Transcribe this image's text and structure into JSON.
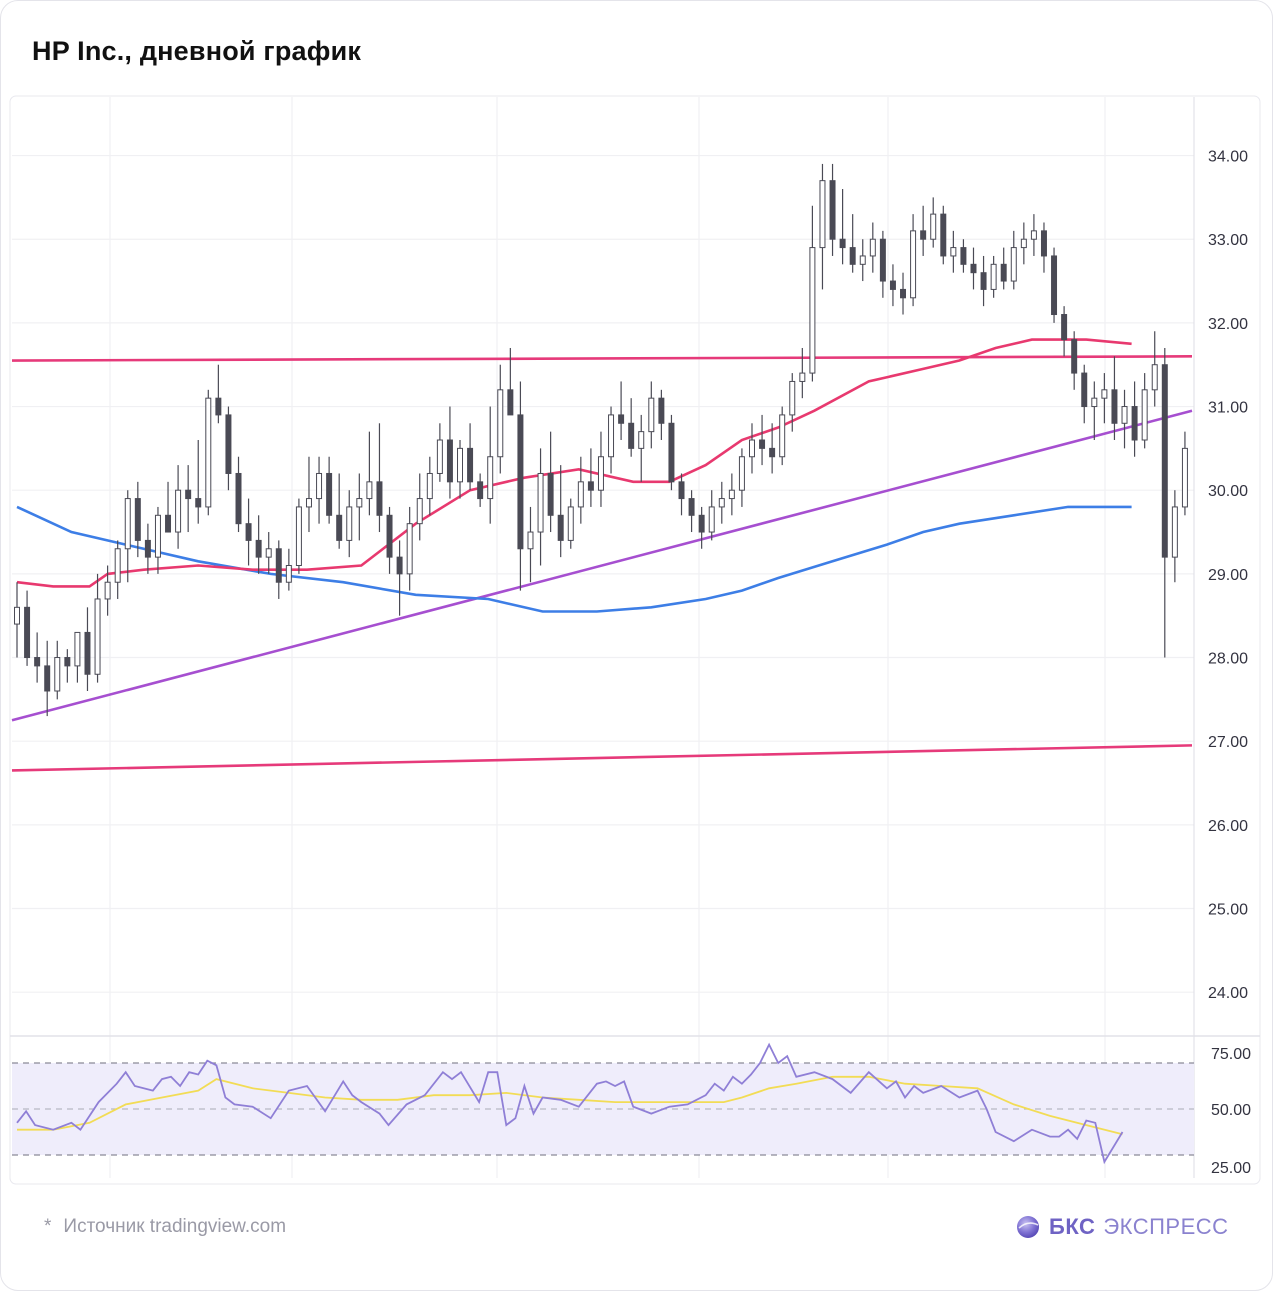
{
  "title": "HP Inc., дневной график",
  "source": {
    "star": "*",
    "text": "Источник tradingview.com"
  },
  "brand": {
    "name_bold": "БКС",
    "name_rest": "ЭКСПРЕСС",
    "logo_icon": "bcs-orb-icon"
  },
  "colors": {
    "candle": "#4a4a55",
    "ma_short": "#e8396f",
    "ma_long": "#3d7ee6",
    "level": "#e63a7a",
    "trend": "#a64fd0",
    "rsi": "#8f7fd6",
    "rsi_ma": "#f2dc55",
    "rsi_band": "#efedfb",
    "grid": "#f0f0f3"
  },
  "chart_data": {
    "type": "candlestick",
    "title": "HP Inc., дневной график",
    "price_axis": {
      "min": 23.5,
      "max": 34.7,
      "ticks": [
        "34.00",
        "33.00",
        "32.00",
        "31.00",
        "30.00",
        "29.00",
        "28.00",
        "27.00",
        "26.00",
        "25.00",
        "24.00"
      ]
    },
    "rsi_axis": {
      "min": 20,
      "max": 80,
      "ticks": [
        "75.00",
        "50.00",
        "25.00"
      ],
      "levels": [
        70,
        50,
        30
      ]
    },
    "bars": 130,
    "ohlc": [
      [
        28.4,
        28.9,
        28.0,
        28.6
      ],
      [
        28.6,
        28.8,
        27.9,
        28.0
      ],
      [
        28.0,
        28.3,
        27.7,
        27.9
      ],
      [
        27.9,
        28.2,
        27.3,
        27.6
      ],
      [
        27.6,
        28.2,
        27.5,
        28.0
      ],
      [
        28.0,
        28.1,
        27.7,
        27.9
      ],
      [
        27.9,
        28.3,
        27.7,
        28.3
      ],
      [
        28.3,
        28.6,
        27.6,
        27.8
      ],
      [
        27.8,
        29.0,
        27.7,
        28.7
      ],
      [
        28.7,
        29.1,
        28.5,
        28.9
      ],
      [
        28.9,
        29.4,
        28.7,
        29.3
      ],
      [
        29.3,
        30.0,
        28.9,
        29.9
      ],
      [
        29.9,
        30.1,
        29.2,
        29.4
      ],
      [
        29.4,
        29.6,
        29.0,
        29.2
      ],
      [
        29.2,
        29.8,
        29.0,
        29.7
      ],
      [
        29.7,
        30.1,
        29.5,
        29.5
      ],
      [
        29.5,
        30.3,
        29.3,
        30.0
      ],
      [
        30.0,
        30.3,
        29.5,
        29.9
      ],
      [
        29.9,
        30.6,
        29.6,
        29.8
      ],
      [
        29.8,
        31.2,
        29.7,
        31.1
      ],
      [
        31.1,
        31.5,
        30.8,
        30.9
      ],
      [
        30.9,
        31.0,
        30.0,
        30.2
      ],
      [
        30.2,
        30.4,
        29.5,
        29.6
      ],
      [
        29.6,
        29.9,
        29.1,
        29.4
      ],
      [
        29.4,
        29.7,
        29.0,
        29.2
      ],
      [
        29.2,
        29.5,
        29.0,
        29.3
      ],
      [
        29.3,
        29.4,
        28.7,
        28.9
      ],
      [
        28.9,
        29.3,
        28.8,
        29.1
      ],
      [
        29.1,
        29.9,
        29.0,
        29.8
      ],
      [
        29.8,
        30.4,
        29.5,
        29.9
      ],
      [
        29.9,
        30.4,
        29.6,
        30.2
      ],
      [
        30.2,
        30.4,
        29.6,
        29.7
      ],
      [
        29.7,
        30.2,
        29.3,
        29.4
      ],
      [
        29.4,
        30.0,
        29.2,
        29.8
      ],
      [
        29.8,
        30.2,
        29.4,
        29.9
      ],
      [
        29.9,
        30.7,
        29.7,
        30.1
      ],
      [
        30.1,
        30.8,
        29.5,
        29.7
      ],
      [
        29.7,
        29.8,
        29.0,
        29.2
      ],
      [
        29.2,
        29.4,
        28.5,
        29.0
      ],
      [
        29.0,
        29.8,
        28.8,
        29.6
      ],
      [
        29.6,
        30.2,
        29.4,
        29.9
      ],
      [
        29.9,
        30.4,
        29.7,
        30.2
      ],
      [
        30.2,
        30.8,
        30.1,
        30.6
      ],
      [
        30.6,
        31.0,
        29.9,
        30.1
      ],
      [
        30.1,
        30.6,
        29.9,
        30.5
      ],
      [
        30.5,
        30.8,
        30.0,
        30.1
      ],
      [
        30.1,
        30.2,
        29.8,
        29.9
      ],
      [
        29.9,
        31.0,
        29.6,
        30.4
      ],
      [
        30.4,
        31.5,
        30.2,
        31.2
      ],
      [
        31.2,
        31.7,
        30.9,
        30.9
      ],
      [
        30.9,
        31.3,
        28.8,
        29.3
      ],
      [
        29.3,
        29.8,
        28.9,
        29.5
      ],
      [
        29.5,
        30.5,
        29.1,
        30.2
      ],
      [
        30.2,
        30.7,
        29.5,
        29.7
      ],
      [
        29.7,
        30.3,
        29.2,
        29.4
      ],
      [
        29.4,
        29.9,
        29.3,
        29.8
      ],
      [
        29.8,
        30.4,
        29.6,
        30.1
      ],
      [
        30.1,
        30.5,
        29.8,
        30.0
      ],
      [
        30.0,
        30.7,
        29.8,
        30.4
      ],
      [
        30.4,
        31.0,
        30.2,
        30.9
      ],
      [
        30.9,
        31.3,
        30.6,
        30.8
      ],
      [
        30.8,
        31.1,
        30.4,
        30.5
      ],
      [
        30.5,
        30.9,
        30.1,
        30.7
      ],
      [
        30.7,
        31.3,
        30.5,
        31.1
      ],
      [
        31.1,
        31.2,
        30.6,
        30.8
      ],
      [
        30.8,
        30.9,
        30.0,
        30.1
      ],
      [
        30.1,
        30.2,
        29.7,
        29.9
      ],
      [
        29.9,
        30.0,
        29.5,
        29.7
      ],
      [
        29.7,
        29.8,
        29.3,
        29.5
      ],
      [
        29.5,
        30.0,
        29.4,
        29.8
      ],
      [
        29.8,
        30.1,
        29.6,
        29.9
      ],
      [
        29.9,
        30.2,
        29.7,
        30.0
      ],
      [
        30.0,
        30.5,
        29.8,
        30.4
      ],
      [
        30.4,
        30.8,
        30.2,
        30.6
      ],
      [
        30.6,
        30.9,
        30.3,
        30.5
      ],
      [
        30.5,
        30.8,
        30.2,
        30.4
      ],
      [
        30.4,
        31.0,
        30.3,
        30.9
      ],
      [
        30.9,
        31.4,
        30.7,
        31.3
      ],
      [
        31.3,
        31.7,
        31.1,
        31.4
      ],
      [
        31.4,
        33.4,
        31.3,
        32.9
      ],
      [
        32.9,
        33.9,
        32.4,
        33.7
      ],
      [
        33.7,
        33.9,
        32.8,
        33.0
      ],
      [
        33.0,
        33.6,
        32.7,
        32.9
      ],
      [
        32.9,
        33.3,
        32.6,
        32.7
      ],
      [
        32.7,
        33.0,
        32.5,
        32.8
      ],
      [
        32.8,
        33.2,
        32.6,
        33.0
      ],
      [
        33.0,
        33.1,
        32.3,
        32.5
      ],
      [
        32.5,
        32.7,
        32.2,
        32.4
      ],
      [
        32.4,
        32.6,
        32.1,
        32.3
      ],
      [
        32.3,
        33.3,
        32.2,
        33.1
      ],
      [
        33.1,
        33.4,
        32.8,
        33.0
      ],
      [
        33.0,
        33.5,
        32.9,
        33.3
      ],
      [
        33.3,
        33.4,
        32.7,
        32.8
      ],
      [
        32.8,
        33.1,
        32.6,
        32.9
      ],
      [
        32.9,
        33.0,
        32.6,
        32.7
      ],
      [
        32.7,
        32.9,
        32.4,
        32.6
      ],
      [
        32.6,
        32.8,
        32.2,
        32.4
      ],
      [
        32.4,
        32.8,
        32.3,
        32.7
      ],
      [
        32.7,
        32.9,
        32.4,
        32.5
      ],
      [
        32.5,
        33.1,
        32.4,
        32.9
      ],
      [
        32.9,
        33.2,
        32.7,
        33.0
      ],
      [
        33.0,
        33.3,
        32.8,
        33.1
      ],
      [
        33.1,
        33.2,
        32.6,
        32.8
      ],
      [
        32.8,
        32.9,
        32.0,
        32.1
      ],
      [
        32.1,
        32.2,
        31.6,
        31.8
      ],
      [
        31.8,
        31.9,
        31.2,
        31.4
      ],
      [
        31.4,
        31.5,
        30.8,
        31.0
      ],
      [
        31.0,
        31.3,
        30.6,
        31.1
      ],
      [
        31.1,
        31.4,
        30.8,
        31.2
      ],
      [
        31.2,
        31.6,
        30.6,
        30.8
      ],
      [
        30.8,
        31.2,
        30.5,
        31.0
      ],
      [
        31.0,
        31.3,
        30.4,
        30.6
      ],
      [
        30.6,
        31.4,
        30.5,
        31.2
      ],
      [
        31.2,
        31.9,
        31.0,
        31.5
      ],
      [
        31.5,
        31.7,
        28.0,
        29.2
      ],
      [
        29.2,
        30.0,
        28.9,
        29.8
      ],
      [
        29.8,
        30.7,
        29.7,
        30.5
      ]
    ],
    "ma_short": [
      [
        0,
        28.9
      ],
      [
        4,
        28.85
      ],
      [
        8,
        28.85
      ],
      [
        10,
        29.0
      ],
      [
        14,
        29.05
      ],
      [
        20,
        29.1
      ],
      [
        26,
        29.05
      ],
      [
        32,
        29.05
      ],
      [
        38,
        29.1
      ],
      [
        44,
        29.6
      ],
      [
        50,
        30.0
      ],
      [
        56,
        30.15
      ],
      [
        62,
        30.25
      ],
      [
        68,
        30.1
      ],
      [
        72,
        30.1
      ],
      [
        76,
        30.3
      ],
      [
        80,
        30.6
      ],
      [
        84,
        30.75
      ],
      [
        88,
        30.95
      ],
      [
        94,
        31.3
      ],
      [
        100,
        31.45
      ],
      [
        104,
        31.55
      ],
      [
        108,
        31.7
      ],
      [
        112,
        31.8
      ],
      [
        118,
        31.8
      ],
      [
        123,
        31.75
      ]
    ],
    "ma_long": [
      [
        0,
        29.8
      ],
      [
        6,
        29.5
      ],
      [
        12,
        29.35
      ],
      [
        20,
        29.15
      ],
      [
        28,
        29.0
      ],
      [
        36,
        28.9
      ],
      [
        44,
        28.75
      ],
      [
        52,
        28.7
      ],
      [
        58,
        28.55
      ],
      [
        64,
        28.55
      ],
      [
        70,
        28.6
      ],
      [
        76,
        28.7
      ],
      [
        80,
        28.8
      ],
      [
        84,
        28.95
      ],
      [
        90,
        29.15
      ],
      [
        96,
        29.35
      ],
      [
        100,
        29.5
      ],
      [
        104,
        29.6
      ],
      [
        110,
        29.7
      ],
      [
        116,
        29.8
      ],
      [
        123,
        29.8
      ]
    ],
    "levels": [
      {
        "x0": 0,
        "y0": 31.55,
        "x1": 132,
        "y1": 31.6
      },
      {
        "x0": 0,
        "y0": 26.65,
        "x1": 132,
        "y1": 26.95
      }
    ],
    "trendline": {
      "x0": 0,
      "y0": 27.25,
      "x1": 132,
      "y1": 30.95
    },
    "rsi": [
      [
        0,
        44
      ],
      [
        1,
        49
      ],
      [
        2,
        43
      ],
      [
        4,
        41
      ],
      [
        6,
        44
      ],
      [
        7,
        41
      ],
      [
        9,
        53
      ],
      [
        11,
        61
      ],
      [
        12,
        66
      ],
      [
        13,
        60
      ],
      [
        15,
        58
      ],
      [
        16,
        63
      ],
      [
        17,
        64
      ],
      [
        18,
        60
      ],
      [
        19,
        66
      ],
      [
        20,
        65
      ],
      [
        21,
        71
      ],
      [
        22,
        69
      ],
      [
        23,
        55
      ],
      [
        24,
        52
      ],
      [
        26,
        51
      ],
      [
        28,
        46
      ],
      [
        30,
        58
      ],
      [
        32,
        60
      ],
      [
        34,
        49
      ],
      [
        36,
        62
      ],
      [
        37,
        56
      ],
      [
        38,
        53
      ],
      [
        40,
        48
      ],
      [
        41,
        43
      ],
      [
        43,
        52
      ],
      [
        45,
        56
      ],
      [
        47,
        66
      ],
      [
        48,
        63
      ],
      [
        49,
        66
      ],
      [
        51,
        53
      ],
      [
        52,
        66
      ],
      [
        53,
        66
      ],
      [
        54,
        43
      ],
      [
        55,
        46
      ],
      [
        56,
        60
      ],
      [
        57,
        48
      ],
      [
        58,
        55
      ],
      [
        60,
        54
      ],
      [
        62,
        51
      ],
      [
        64,
        61
      ],
      [
        65,
        62
      ],
      [
        66,
        60
      ],
      [
        67,
        62
      ],
      [
        68,
        51
      ],
      [
        70,
        48
      ],
      [
        72,
        51
      ],
      [
        74,
        52
      ],
      [
        76,
        56
      ],
      [
        77,
        61
      ],
      [
        78,
        58
      ],
      [
        79,
        64
      ],
      [
        80,
        61
      ],
      [
        81,
        65
      ],
      [
        82,
        70
      ],
      [
        83,
        78
      ],
      [
        84,
        70
      ],
      [
        85,
        73
      ],
      [
        86,
        64
      ],
      [
        88,
        66
      ],
      [
        90,
        63
      ],
      [
        92,
        57
      ],
      [
        94,
        66
      ],
      [
        96,
        59
      ],
      [
        97,
        62
      ],
      [
        98,
        55
      ],
      [
        99,
        60
      ],
      [
        100,
        57
      ],
      [
        102,
        60
      ],
      [
        104,
        55
      ],
      [
        106,
        58
      ],
      [
        107,
        50
      ],
      [
        108,
        40
      ],
      [
        110,
        36
      ],
      [
        112,
        41
      ],
      [
        114,
        38
      ],
      [
        115,
        38
      ],
      [
        116,
        41
      ],
      [
        117,
        37
      ],
      [
        118,
        45
      ],
      [
        119,
        44
      ],
      [
        120,
        27
      ],
      [
        122,
        40
      ]
    ],
    "rsi_ma": [
      [
        0,
        41
      ],
      [
        4,
        41
      ],
      [
        8,
        44
      ],
      [
        12,
        52
      ],
      [
        16,
        55
      ],
      [
        20,
        58
      ],
      [
        22,
        63
      ],
      [
        26,
        59
      ],
      [
        30,
        57
      ],
      [
        34,
        55
      ],
      [
        38,
        54
      ],
      [
        42,
        54
      ],
      [
        46,
        56
      ],
      [
        50,
        56
      ],
      [
        54,
        57
      ],
      [
        58,
        55
      ],
      [
        62,
        54
      ],
      [
        66,
        53
      ],
      [
        70,
        53
      ],
      [
        74,
        53
      ],
      [
        78,
        53
      ],
      [
        80,
        55
      ],
      [
        83,
        59
      ],
      [
        86,
        61
      ],
      [
        90,
        64
      ],
      [
        94,
        64
      ],
      [
        98,
        61
      ],
      [
        102,
        60
      ],
      [
        106,
        59
      ],
      [
        110,
        52
      ],
      [
        114,
        47
      ],
      [
        118,
        43
      ],
      [
        122,
        39
      ]
    ]
  }
}
